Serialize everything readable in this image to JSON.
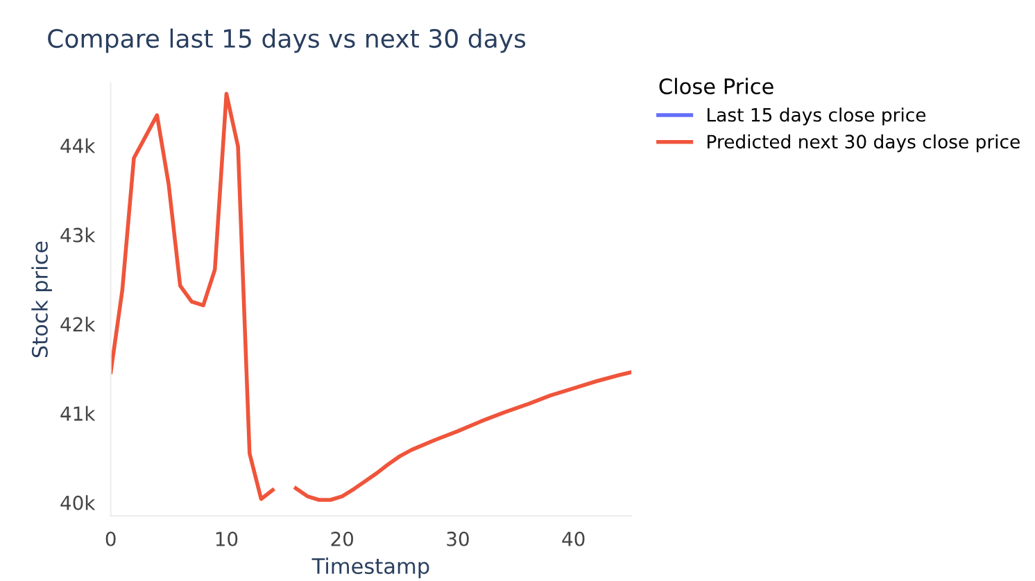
{
  "chart_data": {
    "type": "line",
    "title": "Compare last 15 days vs next 30 days",
    "xlabel": "Timestamp",
    "ylabel": "Stock price",
    "legend_title": "Close Price",
    "series": [
      {
        "name": "Last 15 days close price",
        "color": "#636efa"
      },
      {
        "name": "Predicted next 30 days close price",
        "color": "#ef553b",
        "x": [
          0,
          1,
          2,
          3,
          4,
          5,
          6,
          7,
          8,
          9,
          10,
          11,
          12,
          13,
          14,
          15,
          16,
          17,
          18,
          19,
          20,
          21,
          22,
          23,
          24,
          25,
          26,
          28,
          30,
          32,
          34,
          36,
          38,
          40,
          42,
          44,
          45
        ],
        "values": [
          41460,
          42380,
          43860,
          44100,
          44340,
          43570,
          42430,
          42250,
          42210,
          42610,
          44580,
          43990,
          40550,
          40040,
          40140,
          null,
          40160,
          40070,
          40030,
          40030,
          40070,
          40150,
          40240,
          40330,
          40430,
          40520,
          40590,
          40700,
          40800,
          40910,
          41010,
          41100,
          41200,
          41280,
          41360,
          41430,
          41460
        ]
      }
    ],
    "xlim": [
      0,
      45
    ],
    "ylim": [
      39850,
      44700
    ],
    "xticks": [
      0,
      10,
      20,
      30,
      40
    ],
    "yticks": [
      {
        "value": 40000,
        "label": "40k"
      },
      {
        "value": 41000,
        "label": "41k"
      },
      {
        "value": 42000,
        "label": "42k"
      },
      {
        "value": 43000,
        "label": "43k"
      },
      {
        "value": 44000,
        "label": "44k"
      }
    ],
    "grid": false,
    "legend": "top right",
    "line_style": "solid",
    "marker": "none"
  }
}
